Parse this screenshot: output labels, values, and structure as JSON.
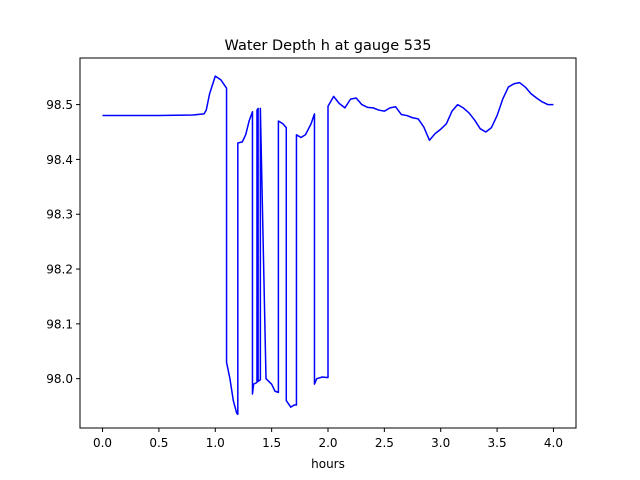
{
  "chart_data": {
    "type": "line",
    "title": "Water Depth h at gauge 535",
    "xlabel": "hours",
    "ylabel": "",
    "xlim": [
      -0.2,
      4.2
    ],
    "ylim": [
      97.91,
      98.585
    ],
    "xticks": [
      0.0,
      0.5,
      1.0,
      1.5,
      2.0,
      2.5,
      3.0,
      3.5,
      4.0
    ],
    "xtick_labels": [
      "0.0",
      "0.5",
      "1.0",
      "1.5",
      "2.0",
      "2.5",
      "3.0",
      "3.5",
      "4.0"
    ],
    "yticks": [
      98.0,
      98.1,
      98.2,
      98.3,
      98.4,
      98.5
    ],
    "ytick_labels": [
      "98.0",
      "98.1",
      "98.2",
      "98.3",
      "98.4",
      "98.5"
    ],
    "grid": false,
    "legend": "none",
    "series": [
      {
        "color": "#0000ff",
        "x": [
          0.0,
          0.5,
          0.8,
          0.9,
          0.92,
          0.95,
          1.0,
          1.05,
          1.1,
          1.1,
          1.13,
          1.16,
          1.19,
          1.2,
          1.2,
          1.24,
          1.27,
          1.3,
          1.33,
          1.33,
          1.34,
          1.37,
          1.37,
          1.38,
          1.38,
          1.4,
          1.4,
          1.45,
          1.5,
          1.53,
          1.56,
          1.56,
          1.6,
          1.63,
          1.63,
          1.67,
          1.7,
          1.72,
          1.72,
          1.76,
          1.8,
          1.85,
          1.88,
          1.88,
          1.9,
          1.95,
          2.0,
          2.0,
          2.05,
          2.1,
          2.15,
          2.2,
          2.25,
          2.3,
          2.35,
          2.4,
          2.45,
          2.5,
          2.55,
          2.6,
          2.65,
          2.7,
          2.75,
          2.8,
          2.85,
          2.9,
          2.95,
          3.0,
          3.05,
          3.1,
          3.15,
          3.2,
          3.25,
          3.3,
          3.35,
          3.4,
          3.45,
          3.5,
          3.55,
          3.6,
          3.65,
          3.7,
          3.75,
          3.8,
          3.85,
          3.9,
          3.95,
          4.0
        ],
        "y": [
          98.48,
          98.48,
          98.481,
          98.483,
          98.49,
          98.52,
          98.552,
          98.545,
          98.53,
          98.03,
          98.0,
          97.96,
          97.937,
          97.935,
          98.43,
          98.432,
          98.445,
          98.47,
          98.487,
          97.972,
          97.99,
          97.993,
          98.49,
          98.493,
          97.995,
          97.998,
          98.493,
          98.0,
          97.99,
          97.977,
          97.975,
          98.47,
          98.465,
          98.458,
          97.96,
          97.948,
          97.952,
          97.952,
          98.445,
          98.44,
          98.445,
          98.465,
          98.483,
          97.99,
          98.0,
          98.003,
          98.002,
          98.497,
          98.515,
          98.502,
          98.494,
          98.51,
          98.512,
          98.5,
          98.495,
          98.494,
          98.49,
          98.488,
          98.494,
          98.496,
          98.482,
          98.48,
          98.476,
          98.474,
          98.459,
          98.435,
          98.447,
          98.455,
          98.465,
          98.488,
          98.5,
          98.494,
          98.485,
          98.472,
          98.456,
          98.45,
          98.458,
          98.48,
          98.51,
          98.532,
          98.538,
          98.54,
          98.532,
          98.52,
          98.512,
          98.505,
          98.5,
          98.5
        ]
      }
    ]
  }
}
